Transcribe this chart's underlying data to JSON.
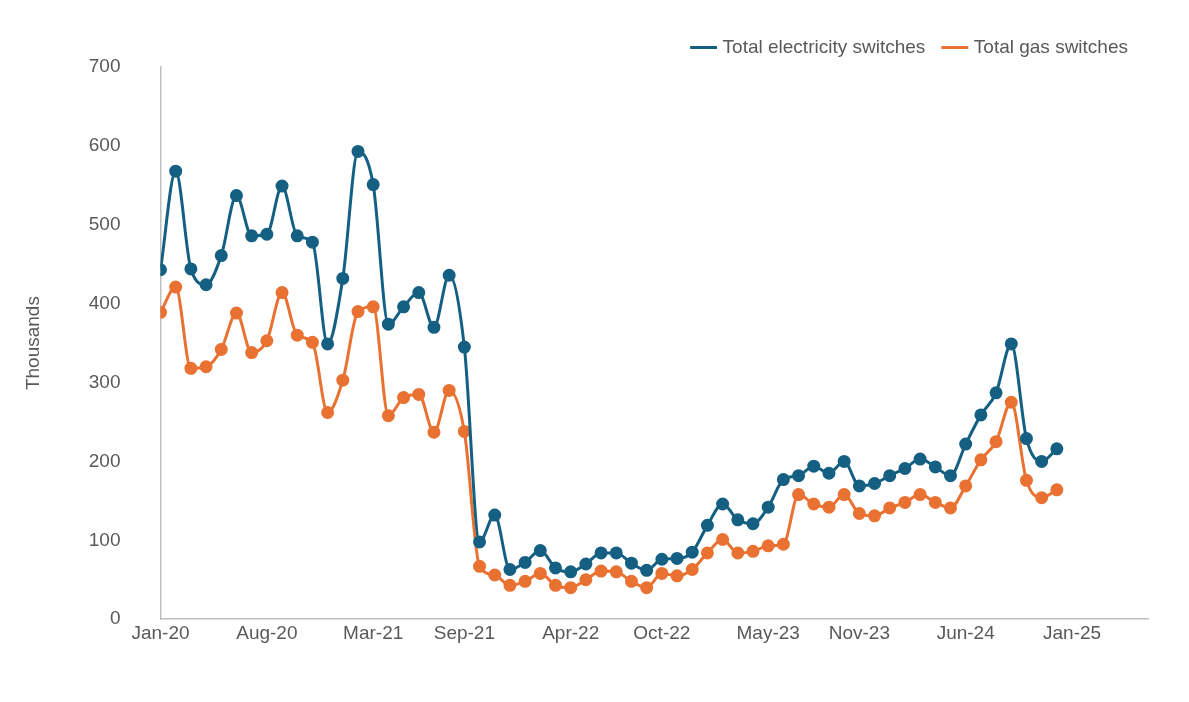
{
  "chart_data": {
    "type": "line",
    "ylabel": "Thousands",
    "legend": "top right",
    "marker": "circle",
    "grid": false,
    "x": [
      "2020-01",
      "2020-02",
      "2020-03",
      "2020-04",
      "2020-05",
      "2020-06",
      "2020-07",
      "2020-08",
      "2020-09",
      "2020-10",
      "2020-11",
      "2020-12",
      "2021-01",
      "2021-02",
      "2021-03",
      "2021-04",
      "2021-05",
      "2021-06",
      "2021-07",
      "2021-08",
      "2021-09",
      "2021-10",
      "2021-11",
      "2021-12",
      "2022-01",
      "2022-02",
      "2022-03",
      "2022-04",
      "2022-05",
      "2022-06",
      "2022-07",
      "2022-08",
      "2022-09",
      "2022-10",
      "2022-11",
      "2022-12",
      "2023-01",
      "2023-02",
      "2023-03",
      "2023-04",
      "2023-05",
      "2023-06",
      "2023-07",
      "2023-08",
      "2023-09",
      "2023-10",
      "2023-11",
      "2023-12",
      "2024-01",
      "2024-02",
      "2024-03",
      "2024-04",
      "2024-05",
      "2024-06",
      "2024-07",
      "2024-08",
      "2024-09",
      "2024-10",
      "2024-11",
      "2024-12"
    ],
    "xlim": [
      "2020-01",
      "2025-06"
    ],
    "xticks": [
      {
        "value": "2020-01",
        "label": "Jan-20"
      },
      {
        "value": "2020-08",
        "label": "Aug-20"
      },
      {
        "value": "2021-03",
        "label": "Mar-21"
      },
      {
        "value": "2021-09",
        "label": "Sep-21"
      },
      {
        "value": "2022-04",
        "label": "Apr-22"
      },
      {
        "value": "2022-10",
        "label": "Oct-22"
      },
      {
        "value": "2023-05",
        "label": "May-23"
      },
      {
        "value": "2023-11",
        "label": "Nov-23"
      },
      {
        "value": "2024-06",
        "label": "Jun-24"
      },
      {
        "value": "2025-01",
        "label": "Jan-25"
      }
    ],
    "ylim": [
      0,
      700
    ],
    "yticks": [
      0,
      100,
      200,
      300,
      400,
      500,
      600,
      700
    ],
    "series": [
      {
        "name": "Total electricity switches",
        "color": "#156082",
        "values": [
          443,
          568,
          444,
          424,
          461,
          537,
          486,
          488,
          549,
          486,
          478,
          349,
          432,
          593,
          551,
          374,
          396,
          414,
          370,
          436,
          345,
          98,
          132,
          63,
          72,
          87,
          65,
          60,
          70,
          84,
          84,
          71,
          62,
          76,
          77,
          85,
          119,
          146,
          126,
          121,
          142,
          177,
          182,
          194,
          185,
          200,
          169,
          172,
          182,
          191,
          203,
          193,
          182,
          222,
          259,
          287,
          349,
          229,
          200,
          216
        ]
      },
      {
        "name": "Total gas switches",
        "color": "#e97132",
        "values": [
          389,
          421,
          318,
          320,
          342,
          388,
          338,
          353,
          414,
          360,
          351,
          262,
          303,
          390,
          396,
          258,
          281,
          285,
          237,
          290,
          238,
          67,
          56,
          43,
          48,
          58,
          43,
          40,
          50,
          61,
          60,
          48,
          40,
          58,
          55,
          63,
          84,
          101,
          84,
          86,
          93,
          95,
          158,
          146,
          142,
          158,
          134,
          131,
          141,
          148,
          158,
          148,
          141,
          169,
          202,
          225,
          275,
          176,
          154,
          164
        ]
      }
    ]
  }
}
